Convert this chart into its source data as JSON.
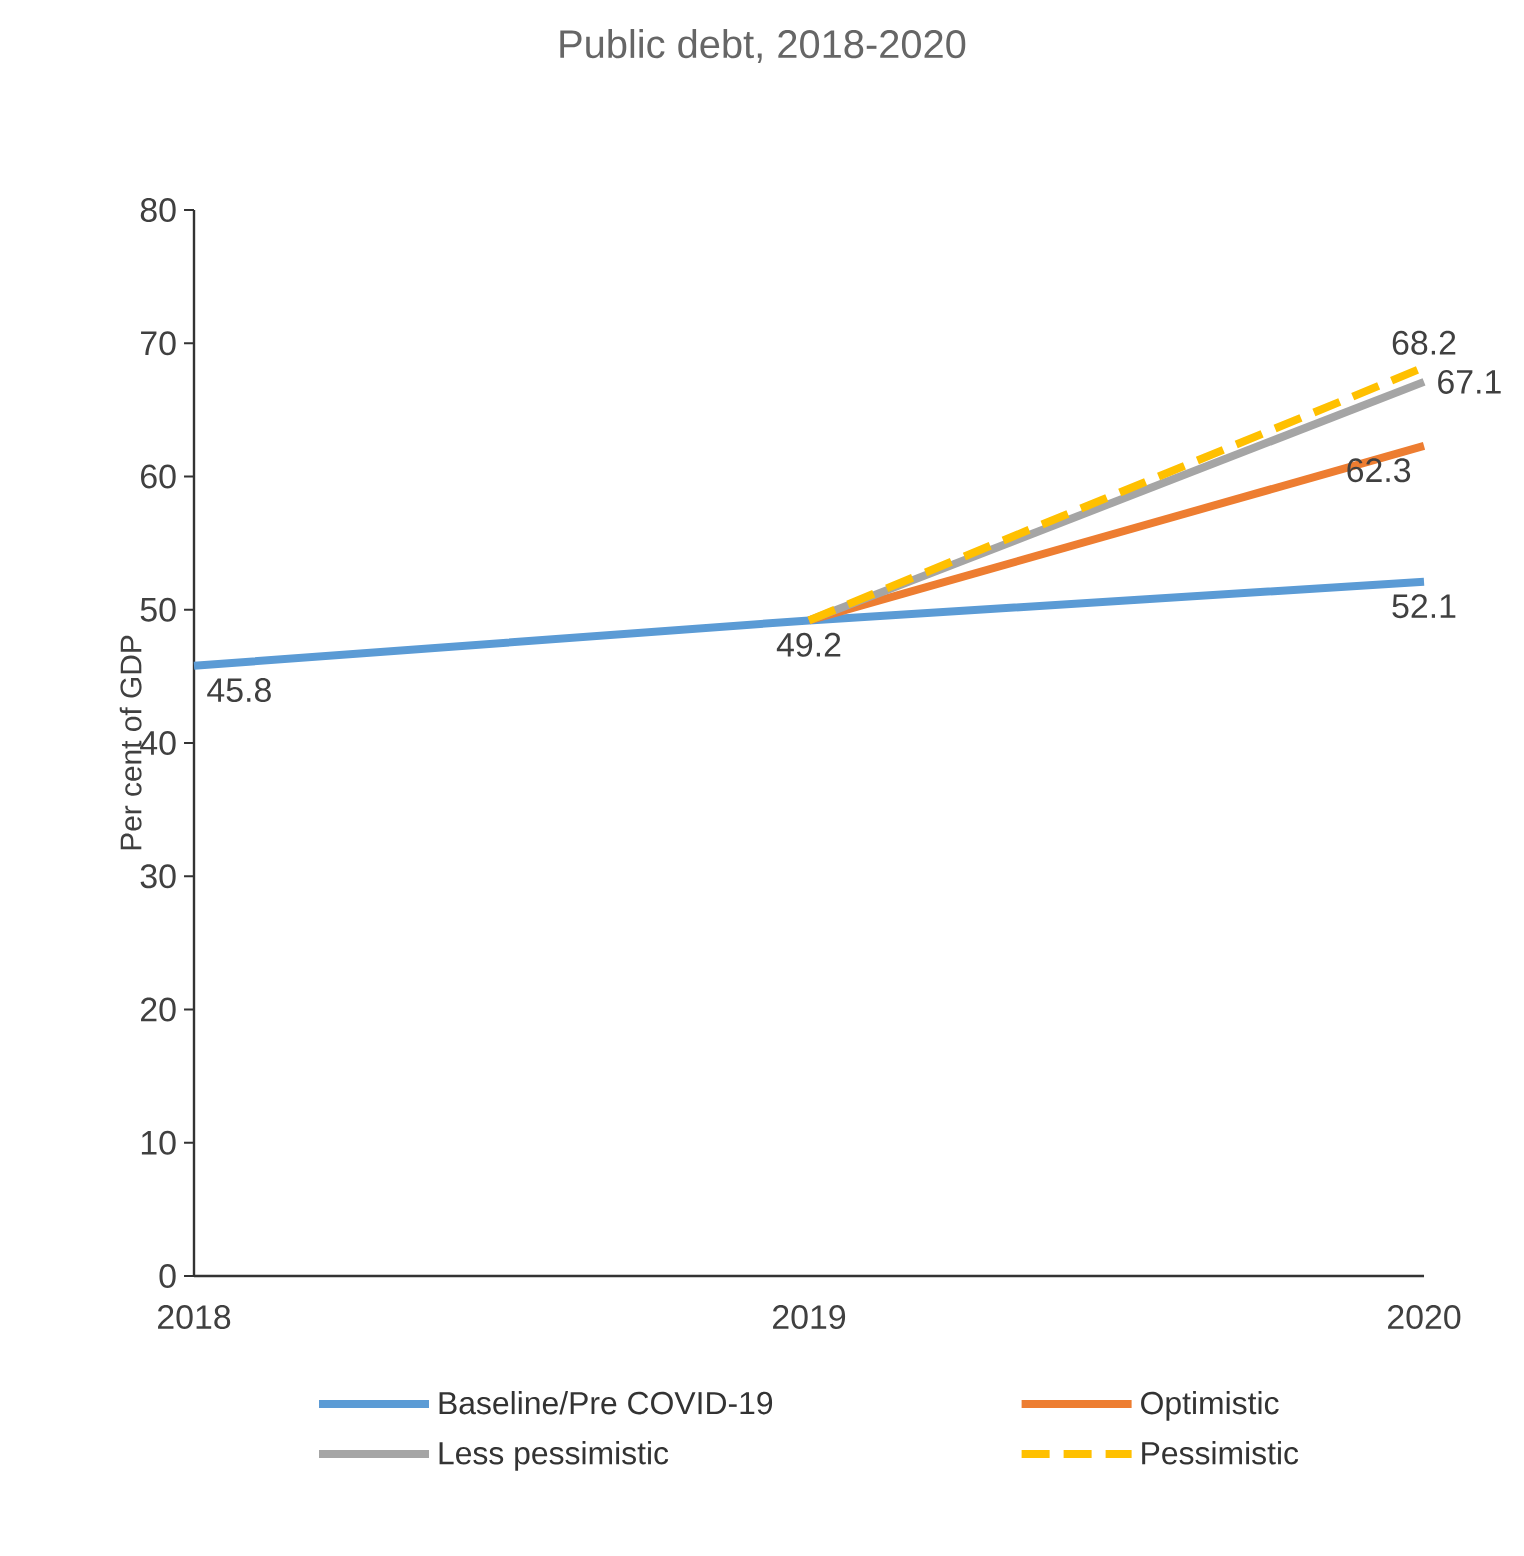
{
  "chart_data": {
    "type": "line",
    "title": "Public debt, 2018-2020",
    "ylabel": "Per cent of GDP",
    "x": [
      2018,
      2019,
      2020
    ],
    "xlim": [
      2018,
      2020
    ],
    "xticks": [
      2018,
      2019,
      2020
    ],
    "ylim": [
      0,
      80
    ],
    "yticks": [
      0,
      10,
      20,
      30,
      40,
      50,
      60,
      70,
      80
    ],
    "series": [
      {
        "name": "Baseline/Pre COVID-19",
        "color": "#5b9bd5",
        "values": [
          45.8,
          49.2,
          52.1
        ],
        "value_labels": [
          "45.8",
          "49.2",
          "52.1"
        ]
      },
      {
        "name": "Optimistic",
        "color": "#ed7d31",
        "values": [
          null,
          49.2,
          62.3
        ],
        "value_labels": [
          null,
          null,
          "62.3"
        ]
      },
      {
        "name": "Less pessimistic",
        "color": "#a5a5a5",
        "values": [
          null,
          49.2,
          67.1
        ],
        "value_labels": [
          null,
          null,
          "67.1"
        ]
      },
      {
        "name": "Pessimistic",
        "color": "#ffc000",
        "values": [
          null,
          49.2,
          68.2
        ],
        "value_labels": [
          null,
          null,
          "68.2"
        ],
        "line_style": "dashed"
      }
    ],
    "legend": "bottom",
    "marker": "none"
  }
}
